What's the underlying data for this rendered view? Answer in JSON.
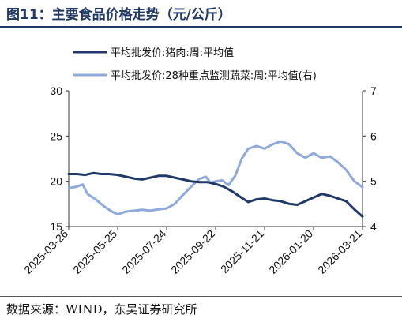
{
  "figure": {
    "title": "图11：主要食品价格走势（元/公斤）",
    "source": "数据来源：WIND，东吴证券研究所"
  },
  "chart_data": {
    "type": "line",
    "x_ticks": [
      "2025-03-26",
      "2025-05-25",
      "2025-07-24",
      "2025-09-22",
      "2025-11-21",
      "2026-01-20",
      "2026-03-21"
    ],
    "y_left": {
      "ticks": [
        "15",
        "20",
        "25",
        "30"
      ],
      "ylim": [
        15,
        30
      ]
    },
    "y_right": {
      "ticks": [
        "4",
        "5",
        "6",
        "7"
      ],
      "ylim": [
        4,
        7
      ]
    },
    "grid": false,
    "legend_position": "top-left",
    "series": [
      {
        "name": "平均批发价:猪肉:周:平均值",
        "axis": "left",
        "color": "#1f3a68",
        "points": [
          [
            "2025-03-26",
            20.8
          ],
          [
            "2025-04-05",
            20.8
          ],
          [
            "2025-04-15",
            20.7
          ],
          [
            "2025-04-25",
            20.9
          ],
          [
            "2025-05-05",
            20.8
          ],
          [
            "2025-05-15",
            20.8
          ],
          [
            "2025-05-25",
            20.7
          ],
          [
            "2025-06-04",
            20.5
          ],
          [
            "2025-06-14",
            20.3
          ],
          [
            "2025-06-24",
            20.2
          ],
          [
            "2025-07-04",
            20.4
          ],
          [
            "2025-07-14",
            20.6
          ],
          [
            "2025-07-24",
            20.6
          ],
          [
            "2025-08-03",
            20.4
          ],
          [
            "2025-08-13",
            20.2
          ],
          [
            "2025-08-23",
            20.0
          ],
          [
            "2025-09-02",
            19.9
          ],
          [
            "2025-09-12",
            19.9
          ],
          [
            "2025-09-22",
            19.7
          ],
          [
            "2025-10-02",
            19.4
          ],
          [
            "2025-10-12",
            18.9
          ],
          [
            "2025-10-22",
            18.3
          ],
          [
            "2025-11-01",
            17.7
          ],
          [
            "2025-11-11",
            18.0
          ],
          [
            "2025-11-21",
            18.1
          ],
          [
            "2025-12-01",
            17.9
          ],
          [
            "2025-12-11",
            17.8
          ],
          [
            "2025-12-21",
            17.5
          ],
          [
            "2025-12-31",
            17.4
          ],
          [
            "2026-01-10",
            17.8
          ],
          [
            "2026-01-20",
            18.2
          ],
          [
            "2026-01-30",
            18.6
          ],
          [
            "2026-02-09",
            18.4
          ],
          [
            "2026-02-19",
            18.1
          ],
          [
            "2026-03-01",
            17.8
          ],
          [
            "2026-03-11",
            16.9
          ],
          [
            "2026-03-21",
            16.1
          ]
        ]
      },
      {
        "name": "平均批发价:28种重点监测蔬菜:周:平均值(右)",
        "axis": "right",
        "color": "#8ea9db",
        "points": [
          [
            "2025-03-26",
            4.85
          ],
          [
            "2025-04-05",
            4.88
          ],
          [
            "2025-04-12",
            4.93
          ],
          [
            "2025-04-18",
            4.72
          ],
          [
            "2025-04-28",
            4.6
          ],
          [
            "2025-05-08",
            4.45
          ],
          [
            "2025-05-18",
            4.33
          ],
          [
            "2025-05-25",
            4.27
          ],
          [
            "2025-06-04",
            4.33
          ],
          [
            "2025-06-14",
            4.35
          ],
          [
            "2025-06-24",
            4.37
          ],
          [
            "2025-07-04",
            4.35
          ],
          [
            "2025-07-14",
            4.38
          ],
          [
            "2025-07-24",
            4.4
          ],
          [
            "2025-08-03",
            4.5
          ],
          [
            "2025-08-13",
            4.7
          ],
          [
            "2025-08-23",
            4.88
          ],
          [
            "2025-09-02",
            5.05
          ],
          [
            "2025-09-10",
            5.1
          ],
          [
            "2025-09-16",
            4.97
          ],
          [
            "2025-09-22",
            5.0
          ],
          [
            "2025-09-30",
            5.02
          ],
          [
            "2025-10-08",
            4.92
          ],
          [
            "2025-10-16",
            5.12
          ],
          [
            "2025-10-24",
            5.5
          ],
          [
            "2025-11-01",
            5.72
          ],
          [
            "2025-11-11",
            5.78
          ],
          [
            "2025-11-21",
            5.72
          ],
          [
            "2025-12-01",
            5.82
          ],
          [
            "2025-12-11",
            5.88
          ],
          [
            "2025-12-21",
            5.82
          ],
          [
            "2025-12-31",
            5.62
          ],
          [
            "2026-01-10",
            5.52
          ],
          [
            "2026-01-20",
            5.62
          ],
          [
            "2026-01-30",
            5.52
          ],
          [
            "2026-02-09",
            5.55
          ],
          [
            "2026-02-19",
            5.42
          ],
          [
            "2026-03-01",
            5.25
          ],
          [
            "2026-03-11",
            5.0
          ],
          [
            "2026-03-21",
            4.87
          ]
        ]
      }
    ]
  }
}
